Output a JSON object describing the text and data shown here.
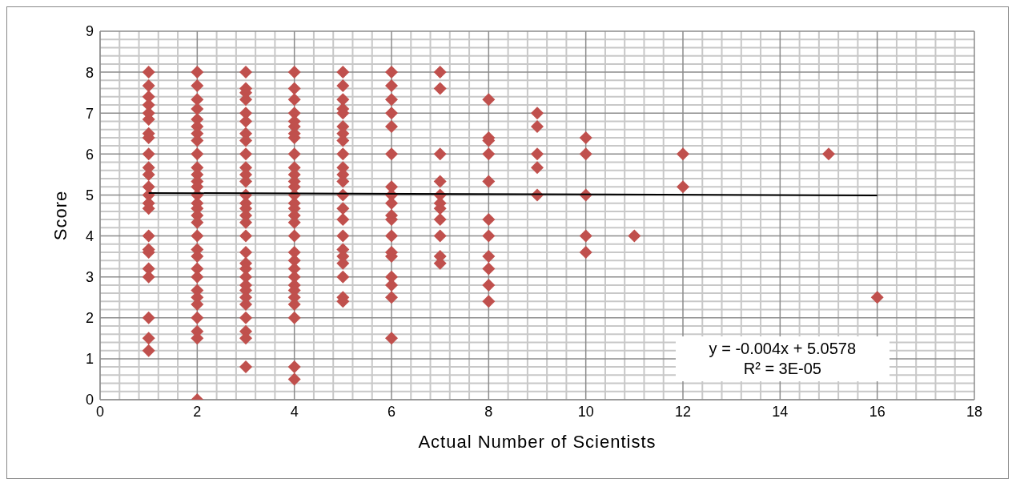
{
  "chart_data": {
    "type": "scatter",
    "xlabel": "Actual Number of Scientists",
    "ylabel": "Score",
    "xlim": [
      0,
      18
    ],
    "xticks": [
      0,
      2,
      4,
      6,
      8,
      10,
      12,
      14,
      16,
      18
    ],
    "ylim": [
      0,
      9
    ],
    "yticks": [
      0,
      1,
      2,
      3,
      4,
      5,
      6,
      7,
      8,
      9
    ],
    "grid": true,
    "annotations": [
      "y = -0.004x + 5.0578",
      "R² = 3E-05"
    ],
    "series": [
      {
        "color": "#c0504d",
        "marker": "diamond",
        "x": [
          1,
          1,
          1,
          1,
          1,
          1,
          1,
          1,
          1,
          1,
          1,
          1,
          1,
          1,
          1,
          1,
          1,
          1,
          1,
          1,
          1,
          1,
          1,
          2,
          2,
          2,
          2,
          2,
          2,
          2,
          2,
          2,
          2,
          2,
          2,
          2,
          2,
          2,
          2,
          2,
          2,
          2,
          2,
          2,
          2,
          2,
          2,
          2,
          2,
          2,
          2,
          2,
          2,
          3,
          3,
          3,
          3,
          3,
          3,
          3,
          3,
          3,
          3,
          3,
          3,
          3,
          3,
          3,
          3,
          3,
          3,
          3,
          3,
          3,
          3,
          3,
          3,
          3,
          3,
          3,
          3,
          3,
          3,
          4,
          4,
          4,
          4,
          4,
          4,
          4,
          4,
          4,
          4,
          4,
          4,
          4,
          4,
          4,
          4,
          4,
          4,
          4,
          4,
          4,
          4,
          4,
          4,
          4,
          4,
          4,
          4,
          4,
          4,
          5,
          5,
          5,
          5,
          5,
          5,
          5,
          5,
          5,
          5,
          5,
          5,
          5,
          5,
          5,
          5,
          5,
          5,
          5,
          5,
          5,
          5,
          6,
          6,
          6,
          6,
          6,
          6,
          6,
          6,
          6,
          6,
          6,
          6,
          6,
          6,
          6,
          6,
          6,
          6,
          7,
          7,
          7,
          7,
          7,
          7,
          7,
          7,
          7,
          7,
          7,
          8,
          8,
          8,
          8,
          8,
          8,
          8,
          8,
          8,
          8,
          8,
          9,
          9,
          9,
          9,
          9,
          10,
          10,
          10,
          10,
          10,
          11,
          12,
          12,
          15,
          16
        ],
        "values": [
          8,
          7.67,
          7.4,
          7.2,
          7,
          6.85,
          6.5,
          6.4,
          6,
          5.67,
          5.5,
          5.2,
          5,
          4.8,
          4.67,
          4,
          3.67,
          3.6,
          3.2,
          3,
          2,
          1.5,
          1.2,
          8,
          7.67,
          7.33,
          7.1,
          6.85,
          6.67,
          6.5,
          6.33,
          6,
          5.67,
          5.5,
          5.33,
          5.2,
          5,
          4.8,
          4.67,
          4.5,
          4.33,
          4,
          3.67,
          3.5,
          3.2,
          3,
          2.67,
          2.5,
          2.33,
          2,
          1.67,
          1.5,
          0,
          8,
          7.6,
          7.5,
          7.33,
          7,
          6.8,
          6.5,
          6.33,
          6,
          5.67,
          5.5,
          5.33,
          5,
          4.8,
          4.67,
          4.5,
          4.33,
          4,
          3.6,
          3.33,
          3.2,
          3,
          2.8,
          2.67,
          2.5,
          2.33,
          2,
          1.67,
          1.5,
          0.8,
          8,
          7.6,
          7.33,
          7,
          6.8,
          6.67,
          6.5,
          6.4,
          6,
          5.67,
          5.5,
          5.33,
          5.2,
          5,
          4.8,
          4.67,
          4.5,
          4.33,
          4,
          3.6,
          3.4,
          3.2,
          3,
          2.8,
          2.67,
          2.5,
          2.33,
          2,
          0.8,
          0.5,
          8,
          7.67,
          7.33,
          7.1,
          7,
          6.67,
          6.5,
          6.33,
          6,
          5.67,
          5.5,
          5.33,
          5,
          4.67,
          4.4,
          4,
          3.67,
          3.5,
          3.33,
          3,
          2.5,
          2.4,
          8,
          7.67,
          7.33,
          7,
          6.67,
          6,
          5.2,
          5,
          4.8,
          4.5,
          4.4,
          4,
          3.6,
          3.5,
          3,
          2.8,
          2.5,
          1.5,
          8,
          7.6,
          6,
          5.33,
          5,
          4.8,
          4.67,
          4.4,
          4,
          3.5,
          3.33,
          7.33,
          6.4,
          6.33,
          6,
          5.33,
          4.4,
          4,
          3.5,
          3.2,
          2.8,
          2.4,
          7,
          6.67,
          6,
          5.67,
          5,
          6.4,
          6,
          5,
          4,
          3.6,
          4,
          6,
          5.2,
          6,
          2.5
        ]
      },
      {
        "type": "line",
        "marker": "none",
        "color": "#000000",
        "x": [
          1,
          16
        ],
        "values": [
          5.05,
          4.99
        ]
      }
    ]
  }
}
